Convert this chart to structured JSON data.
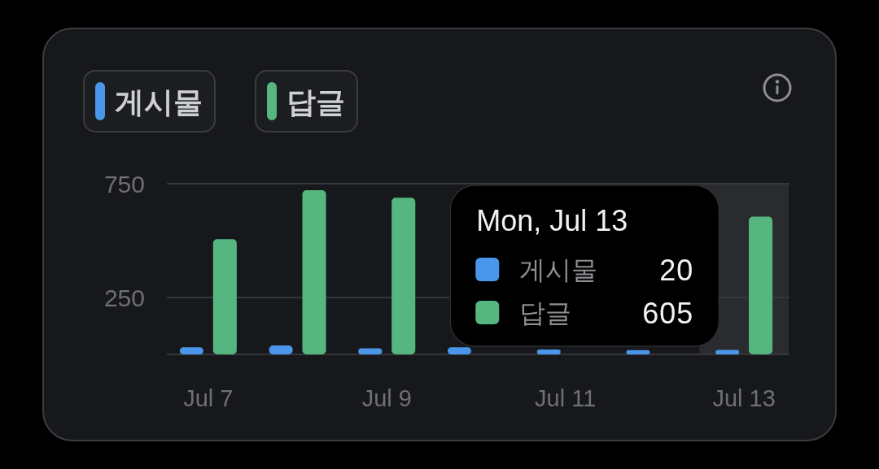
{
  "chart_data": {
    "type": "bar",
    "categories": [
      "Jul 7",
      null,
      "Jul 9",
      null,
      "Jul 11",
      null,
      "Jul 13"
    ],
    "series": [
      {
        "name": "게시물",
        "color": "#4a96ea",
        "values": [
          31,
          39,
          27,
          31,
          21,
          19,
          20
        ]
      },
      {
        "name": "답글",
        "color": "#55b77f",
        "values": [
          506,
          721,
          688,
          null,
          null,
          null,
          605
        ]
      }
    ],
    "ylim": [
      0,
      750
    ],
    "yticks": [
      {
        "value": 0,
        "label": null
      },
      250,
      750
    ],
    "grid": "y",
    "legend": "top left",
    "bands": [
      {
        "axis": "x",
        "from": "Jul 13",
        "to": "Jul 13",
        "color": "#2a2b2f"
      }
    ],
    "annotations": [
      "Mon, Jul 13",
      "게시물",
      "20",
      "답글",
      "605"
    ]
  }
}
